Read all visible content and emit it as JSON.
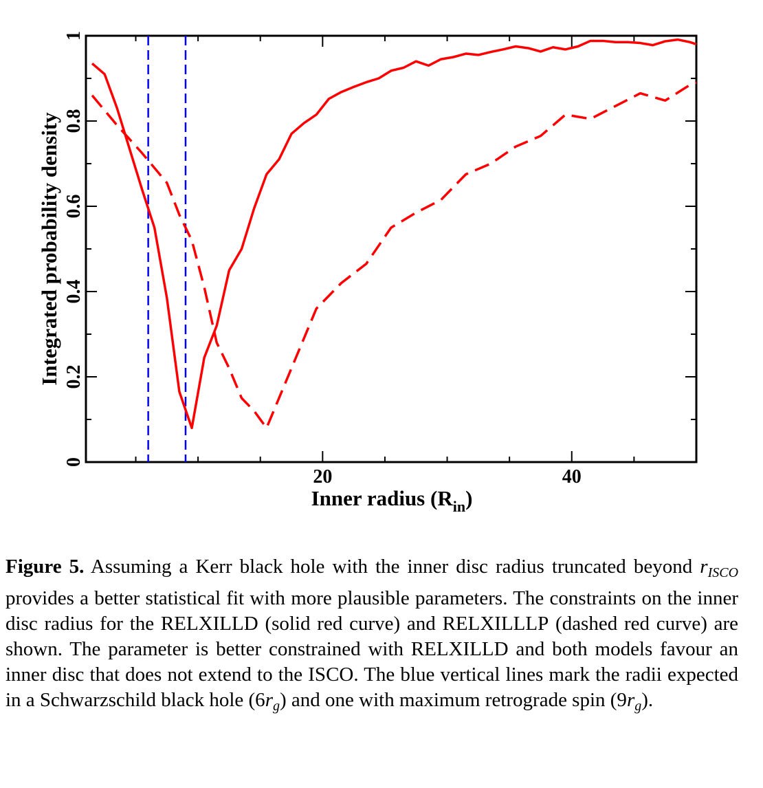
{
  "chart_data": {
    "type": "line",
    "title": "",
    "xlabel": "Inner radius (R",
    "xlabel_sub": "in",
    "xlabel_close": ")",
    "ylabel": "Integrated probability density",
    "xlim": [
      1,
      50
    ],
    "ylim": [
      0,
      1
    ],
    "x_ticks": [
      20,
      40
    ],
    "x_tick_labels": [
      "20",
      "40"
    ],
    "y_ticks": [
      0,
      0.2,
      0.4,
      0.6,
      0.8,
      1
    ],
    "y_tick_labels": [
      "0",
      "0.2",
      "0.4",
      "0.6",
      "0.8",
      "1"
    ],
    "series": [
      {
        "name": "RELXILLD",
        "style": "solid",
        "color": "#ff0000",
        "x": [
          1.5,
          2.5,
          3.5,
          4.5,
          5.5,
          6.5,
          7.5,
          8.5,
          9.5,
          10.5,
          11.5,
          12.5,
          13.5,
          14.5,
          15.5,
          16.5,
          17.5,
          18.5,
          19.5,
          20.5,
          21.5,
          22.5,
          23.5,
          24.5,
          25.5,
          26.5,
          27.5,
          28.5,
          29.5,
          30.5,
          31.5,
          32.5,
          33.5,
          34.5,
          35.5,
          36.5,
          37.5,
          38.5,
          39.5,
          40.5,
          41.5,
          42.5,
          43.5,
          44.5,
          45.5,
          46.5,
          47.5,
          48.5,
          49.5,
          50
        ],
        "y": [
          0.935,
          0.91,
          0.83,
          0.735,
          0.64,
          0.55,
          0.385,
          0.165,
          0.08,
          0.245,
          0.32,
          0.45,
          0.5,
          0.595,
          0.675,
          0.71,
          0.77,
          0.795,
          0.815,
          0.852,
          0.868,
          0.88,
          0.891,
          0.9,
          0.918,
          0.925,
          0.94,
          0.93,
          0.945,
          0.95,
          0.958,
          0.955,
          0.962,
          0.968,
          0.975,
          0.971,
          0.963,
          0.973,
          0.968,
          0.975,
          0.988,
          0.988,
          0.985,
          0.985,
          0.983,
          0.978,
          0.987,
          0.991,
          0.985,
          0.98
        ]
      },
      {
        "name": "RELXILLLP",
        "style": "dashed",
        "color": "#ff0000",
        "x": [
          1.5,
          3.5,
          5.5,
          7.5,
          8.5,
          9.5,
          10.5,
          11.5,
          12.5,
          13.5,
          14.5,
          15.5,
          17.5,
          19.5,
          21.5,
          23.5,
          25.5,
          27.5,
          29.5,
          31.5,
          33.5,
          35.5,
          37.5,
          39.5,
          41.5,
          43.5,
          45.5,
          47.5,
          49.5,
          50
        ],
        "y": [
          0.86,
          0.79,
          0.725,
          0.655,
          0.58,
          0.52,
          0.41,
          0.28,
          0.22,
          0.15,
          0.12,
          0.08,
          0.22,
          0.36,
          0.42,
          0.465,
          0.55,
          0.585,
          0.615,
          0.675,
          0.7,
          0.74,
          0.765,
          0.815,
          0.805,
          0.835,
          0.865,
          0.848,
          0.885,
          0.89
        ]
      }
    ],
    "vertical_lines": [
      {
        "name": "Schwarzschild (6 r_g)",
        "x": 6,
        "color": "#0000ff",
        "style": "dashed"
      },
      {
        "name": "maximum retrograde spin (9 r_g)",
        "x": 9,
        "color": "#0000ff",
        "style": "dashed"
      }
    ]
  },
  "caption": {
    "label": "Figure 5.",
    "part1": "Assuming a Kerr black hole with the inner disc radius truncated beyond",
    "r": "r",
    "r_sub": "ISCO",
    "part2": "provides a better statistical fit with more plausible parameters. The constraints on the inner disc radius for the",
    "model1": "RELXILLD",
    "part3": "(solid red curve) and",
    "model2": "RELXILLLP",
    "part4": "(dashed red curve) are shown. The parameter is better constrained with",
    "model3": "RELXILLD",
    "part5": "and both models favour an inner disc that does not extend to the ISCO. The blue vertical lines mark the radii expected in a Schwarzschild black hole (6",
    "rg1": "r",
    "rg1_sub": "g",
    "part6": ") and one with maximum retrograde spin (9",
    "rg2": "r",
    "rg2_sub": "g",
    "part7": ")."
  }
}
